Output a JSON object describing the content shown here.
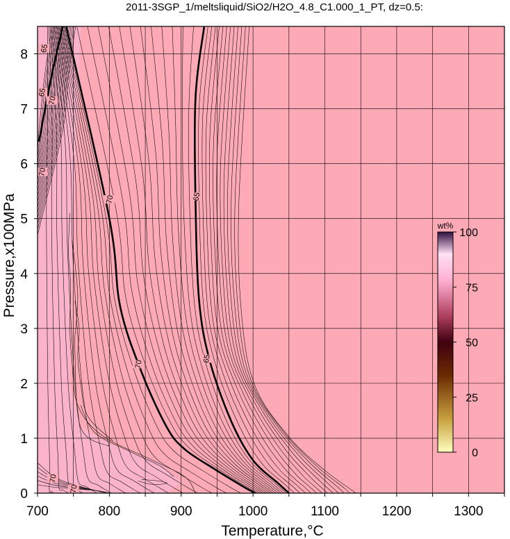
{
  "chart_data": {
    "type": "contour",
    "title": "2011-3SGP_1/meltsliquid/SiO2/H2O_4.8_C1.000_1_PT, dz=0.5:",
    "xlabel": "Temperature,°C",
    "ylabel": "Pressure,x100MPa",
    "xlim": [
      700,
      1350
    ],
    "ylim": [
      0,
      8.5
    ],
    "x_ticks": [
      700,
      800,
      900,
      1000,
      1100,
      1200,
      1300
    ],
    "y_ticks": [
      0,
      1,
      2,
      3,
      4,
      5,
      6,
      7,
      8
    ],
    "x_grid": [
      700,
      750,
      800,
      850,
      900,
      950,
      1000,
      1050,
      1100,
      1150,
      1200,
      1250,
      1300,
      1350
    ],
    "y_grid": [
      0,
      1,
      2,
      3,
      4,
      5,
      6,
      7,
      8
    ],
    "grid": true,
    "colors": {
      "field": "#fdaab6",
      "field_high": "#fbb3cb",
      "grid": "#000000",
      "contour": "#000000"
    },
    "contour_interval": 0.5,
    "major_contours": [
      {
        "value": 70,
        "points": [
          [
            740,
            8.5
          ],
          [
            800,
            5.0
          ],
          [
            815,
            3.4
          ],
          [
            845,
            2.2
          ],
          [
            880,
            1.2
          ],
          [
            905,
            0.8
          ],
          [
            945,
            0.45
          ],
          [
            985,
            0.13
          ],
          [
            1003,
            0
          ]
        ]
      },
      {
        "value": 65,
        "points": [
          [
            932,
            8.5
          ],
          [
            920,
            7.2
          ],
          [
            920,
            5.3
          ],
          [
            925,
            3.5
          ],
          [
            940,
            2.4
          ],
          [
            970,
            1.3
          ],
          [
            1000,
            0.6
          ],
          [
            1035,
            0.18
          ],
          [
            1050,
            0
          ]
        ]
      },
      {
        "value": 70,
        "points": [
          [
            702,
            6.4
          ],
          [
            718,
            7.5
          ],
          [
            735,
            8.5
          ]
        ]
      }
    ],
    "contour_labels": [
      {
        "text": "70",
        "x": 800,
        "y": 5.35
      },
      {
        "text": "65",
        "x": 921,
        "y": 5.4
      },
      {
        "text": "70",
        "x": 840,
        "y": 2.35
      },
      {
        "text": "65",
        "x": 935,
        "y": 2.45
      },
      {
        "text": "70",
        "x": 720,
        "y": 7.15
      },
      {
        "text": "65",
        "x": 706,
        "y": 7.3
      },
      {
        "text": "70",
        "x": 706,
        "y": 5.85
      },
      {
        "text": "65",
        "x": 709,
        "y": 8.1
      },
      {
        "text": "70",
        "x": 721,
        "y": 0.27
      },
      {
        "text": "70",
        "x": 750,
        "y": 0.08
      }
    ],
    "colorbar": {
      "label": "wt%",
      "ticks": [
        0,
        25,
        50,
        75,
        100
      ],
      "range": [
        0,
        100
      ],
      "stops": [
        "#ffffbf",
        "#7a5b00",
        "#300000",
        "#a03050",
        "#ffb0d0",
        "#ffe8f8",
        "#300030"
      ]
    }
  }
}
